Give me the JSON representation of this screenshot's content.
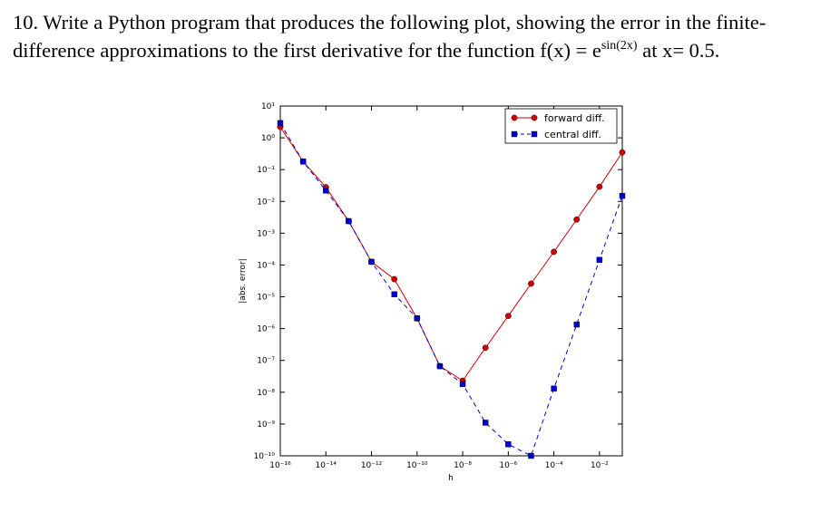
{
  "question": {
    "line1": "10. Write a Python program that produces the following plot, showing the error in the finite-",
    "line2": "difference approximations to the first derivative for the function f(x) = e",
    "superscript": "sin(2x)",
    "line2_end": " at x= 0.5."
  },
  "chart_data": {
    "type": "line",
    "xlabel": "h",
    "ylabel": "|abs. error|",
    "xscale": "log",
    "yscale": "log",
    "legend": "upper right",
    "x": [
      1e-16,
      1e-15,
      1e-14,
      1e-13,
      1e-12,
      1e-11,
      1e-10,
      1e-09,
      1e-08,
      1e-07,
      1e-06,
      1e-05,
      0.0001,
      0.001,
      0.01,
      0.1
    ],
    "series": [
      {
        "name": "forward diff.",
        "color": "#cc0000",
        "marker": "circle",
        "linestyle": "solid",
        "values": [
          2.2,
          0.18,
          0.028,
          0.0024,
          0.000126,
          3.6e-05,
          2.1e-06,
          6.6e-08,
          2.3e-08,
          2.5e-07,
          2.5e-06,
          2.6e-05,
          0.00026,
          0.0027,
          0.029,
          0.35
        ]
      },
      {
        "name": "central diff.",
        "color": "#0000cc",
        "marker": "square",
        "linestyle": "dashed",
        "values": [
          2.9,
          0.18,
          0.022,
          0.0024,
          0.000126,
          1.2e-05,
          2.1e-06,
          6.6e-08,
          1.8e-08,
          1.1e-09,
          2.3e-10,
          1e-10,
          1.3e-08,
          1.35e-06,
          0.000145,
          0.015
        ]
      }
    ],
    "xlim": [
      1e-16,
      0.1
    ],
    "xticks": [
      {
        "value": 1e-16,
        "label": "10⁻¹⁶"
      },
      {
        "value": 1e-14,
        "label": "10⁻¹⁴"
      },
      {
        "value": 1e-12,
        "label": "10⁻¹²"
      },
      {
        "value": 1e-10,
        "label": "10⁻¹⁰"
      },
      {
        "value": 1e-08,
        "label": "10⁻⁸"
      },
      {
        "value": 1e-06,
        "label": "10⁻⁶"
      },
      {
        "value": 0.0001,
        "label": "10⁻⁴"
      },
      {
        "value": 0.01,
        "label": "10⁻²"
      }
    ],
    "ylim": [
      1e-10,
      10
    ],
    "yticks": [
      {
        "value": 10,
        "label": "10¹"
      },
      {
        "value": 1,
        "label": "10⁰"
      },
      {
        "value": 0.1,
        "label": "10⁻¹"
      },
      {
        "value": 0.01,
        "label": "10⁻²"
      },
      {
        "value": 0.001,
        "label": "10⁻³"
      },
      {
        "value": 0.0001,
        "label": "10⁻⁴"
      },
      {
        "value": 1e-05,
        "label": "10⁻⁵"
      },
      {
        "value": 1e-06,
        "label": "10⁻⁶"
      },
      {
        "value": 1e-07,
        "label": "10⁻⁷"
      },
      {
        "value": 1e-08,
        "label": "10⁻⁸"
      },
      {
        "value": 1e-09,
        "label": "10⁻⁹"
      },
      {
        "value": 1e-10,
        "label": "10⁻¹⁰"
      }
    ]
  }
}
